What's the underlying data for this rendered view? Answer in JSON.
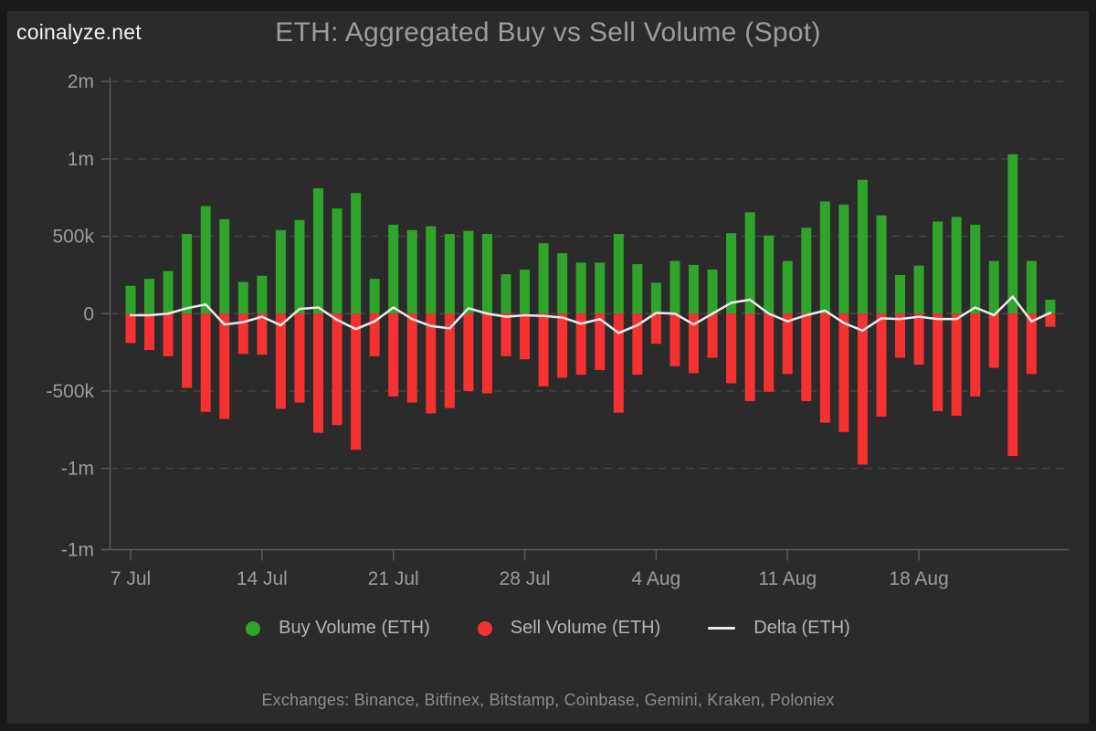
{
  "page": {
    "logo": "coinalyze.net"
  },
  "chart_data": {
    "type": "bar",
    "title": "ETH: Aggregated Buy vs Sell Volume (Spot)",
    "footnote": "Exchanges: Binance, Bitfinex, Bitstamp, Coinbase, Gemini, Kraken, Poloniex",
    "grid": "horizontal-dashed",
    "legend_position": "bottom",
    "ylim": [
      -1525000,
      1525000
    ],
    "axis_color": "#5a5a5a",
    "grid_color": "#474747",
    "tick_text_color": "#9c9c9c",
    "x": [
      "7 Jul",
      "8 Jul",
      "9 Jul",
      "10 Jul",
      "11 Jul",
      "12 Jul",
      "13 Jul",
      "14 Jul",
      "15 Jul",
      "16 Jul",
      "17 Jul",
      "18 Jul",
      "19 Jul",
      "20 Jul",
      "21 Jul",
      "22 Jul",
      "23 Jul",
      "24 Jul",
      "25 Jul",
      "26 Jul",
      "27 Jul",
      "28 Jul",
      "29 Jul",
      "30 Jul",
      "31 Jul",
      "1 Aug",
      "2 Aug",
      "3 Aug",
      "4 Aug",
      "5 Aug",
      "6 Aug",
      "7 Aug",
      "8 Aug",
      "9 Aug",
      "10 Aug",
      "11 Aug",
      "12 Aug",
      "13 Aug",
      "14 Aug",
      "15 Aug",
      "16 Aug",
      "17 Aug",
      "18 Aug",
      "19 Aug",
      "20 Aug",
      "21 Aug",
      "22 Aug",
      "23 Aug",
      "24 Aug",
      "25 Aug"
    ],
    "series": [
      {
        "name": "Buy Volume (ETH)",
        "type": "bar",
        "color": "#2fa42b",
        "values": [
          180000,
          225000,
          275000,
          515000,
          695000,
          610000,
          205000,
          245000,
          540000,
          605000,
          810000,
          680000,
          780000,
          225000,
          575000,
          540000,
          565000,
          515000,
          535000,
          515000,
          255000,
          285000,
          455000,
          390000,
          330000,
          330000,
          515000,
          320000,
          200000,
          340000,
          315000,
          285000,
          520000,
          655000,
          505000,
          340000,
          555000,
          725000,
          705000,
          865000,
          635000,
          250000,
          310000,
          595000,
          625000,
          575000,
          340000,
          1030000,
          340000,
          90000
        ]
      },
      {
        "name": "Sell Volume (ETH)",
        "type": "bar",
        "color": "#f53131",
        "values": [
          -190000,
          -235000,
          -275000,
          -480000,
          -635000,
          -680000,
          -260000,
          -265000,
          -615000,
          -575000,
          -770000,
          -720000,
          -880000,
          -275000,
          -535000,
          -575000,
          -645000,
          -610000,
          -500000,
          -515000,
          -275000,
          -295000,
          -470000,
          -415000,
          -395000,
          -365000,
          -640000,
          -395000,
          -195000,
          -340000,
          -385000,
          -285000,
          -450000,
          -565000,
          -505000,
          -390000,
          -565000,
          -705000,
          -765000,
          -975000,
          -665000,
          -285000,
          -330000,
          -630000,
          -660000,
          -535000,
          -350000,
          -920000,
          -390000,
          -85000
        ]
      },
      {
        "name": "Delta (ETH)",
        "type": "line",
        "color": "#ebebeb",
        "values": [
          -10000,
          -10000,
          0,
          35000,
          60000,
          -70000,
          -55000,
          -20000,
          -75000,
          30000,
          40000,
          -40000,
          -100000,
          -50000,
          40000,
          -35000,
          -80000,
          -95000,
          35000,
          0,
          -20000,
          -10000,
          -15000,
          -25000,
          -65000,
          -35000,
          -125000,
          -75000,
          5000,
          0,
          -70000,
          0,
          70000,
          90000,
          0,
          -50000,
          -10000,
          20000,
          -60000,
          -110000,
          -30000,
          -35000,
          -20000,
          -35000,
          -35000,
          40000,
          -10000,
          110000,
          -50000,
          5000
        ]
      }
    ],
    "y_ticks": [
      {
        "value": 1500000,
        "label": "2m",
        "grid": true,
        "edge": false
      },
      {
        "value": 1000000,
        "label": "1m",
        "grid": true,
        "edge": false
      },
      {
        "value": 500000,
        "label": "500k",
        "grid": true,
        "edge": false
      },
      {
        "value": 0,
        "label": "0",
        "grid": true,
        "edge": false
      },
      {
        "value": -500000,
        "label": "-500k",
        "grid": true,
        "edge": false
      },
      {
        "value": -1000000,
        "label": "-1m",
        "grid": true,
        "edge": false
      },
      {
        "value": -1500000,
        "label": "-1m",
        "grid": false,
        "edge": true
      }
    ],
    "x_ticks": [
      {
        "index": 0,
        "label": "7 Jul"
      },
      {
        "index": 7,
        "label": "14 Jul"
      },
      {
        "index": 14,
        "label": "21 Jul"
      },
      {
        "index": 21,
        "label": "28 Jul"
      },
      {
        "index": 28,
        "label": "4 Aug"
      },
      {
        "index": 35,
        "label": "11 Aug"
      },
      {
        "index": 42,
        "label": "18 Aug"
      }
    ]
  }
}
